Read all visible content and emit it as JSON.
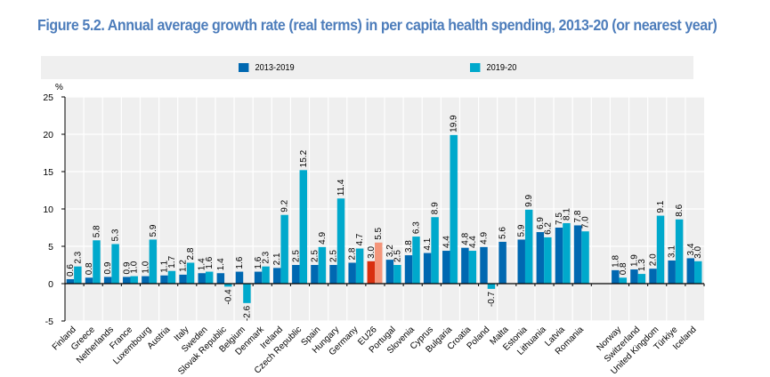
{
  "title": "Figure 5.2. Annual average growth rate (real terms) in per capita health spending, 2013-20 (or nearest year)",
  "colors": {
    "series1": "#0068b1",
    "series2": "#00a9cc",
    "eu_series1": "#d9300f",
    "eu_series2": "#f4957a",
    "plot_bg": "#efefef",
    "title": "#4d7dbb"
  },
  "chart_data": {
    "type": "bar",
    "title": "Figure 5.2. Annual average growth rate (real terms) in per capita health spending, 2013-20 (or nearest year)",
    "xlabel": "",
    "ylabel": "%",
    "ylim": [
      -5,
      25
    ],
    "yticks": [
      -5,
      0,
      5,
      10,
      15,
      20,
      25
    ],
    "grid": true,
    "legend_position": "top",
    "highlight_category": "EU26",
    "categories": [
      "Finland",
      "Greece",
      "Netherlands",
      "France",
      "Luxembourg",
      "Austria",
      "Italy",
      "Sweden",
      "Slovak Republic",
      "Belgium",
      "Denmark",
      "Ireland",
      "Czech Republic",
      "Spain",
      "Hungary",
      "Germany",
      "EU26",
      "Portugal",
      "Slovenia",
      "Cyprus",
      "Bulgaria",
      "Croatia",
      "Poland",
      "Malta",
      "Estonia",
      "Lithuania",
      "Latvia",
      "Romania",
      "",
      "Norway",
      "Switzerland",
      "United Kingdom",
      "Türkiye",
      "Iceland"
    ],
    "series": [
      {
        "name": "2013-2019",
        "values": [
          0.6,
          0.8,
          0.9,
          0.9,
          1.0,
          1.1,
          1.2,
          1.4,
          1.4,
          1.6,
          1.6,
          2.1,
          2.5,
          2.5,
          2.5,
          2.8,
          3.0,
          3.2,
          3.8,
          4.1,
          4.4,
          4.8,
          4.9,
          5.6,
          5.9,
          6.9,
          7.5,
          7.8,
          null,
          1.8,
          1.9,
          2.0,
          3.1,
          3.4
        ]
      },
      {
        "name": "2019-20",
        "values": [
          2.3,
          5.8,
          5.3,
          1.0,
          5.9,
          1.7,
          2.8,
          1.6,
          -0.4,
          -2.6,
          2.3,
          9.2,
          15.2,
          4.9,
          11.4,
          4.7,
          5.5,
          2.5,
          6.3,
          8.9,
          19.9,
          4.4,
          -0.7,
          null,
          9.9,
          6.2,
          8.1,
          7.0,
          null,
          0.8,
          1.3,
          9.1,
          8.6,
          3.0
        ]
      }
    ],
    "value_labels": {
      "2013-2019": [
        "0.6",
        "0.8",
        "0.9",
        "0.9",
        "1.0",
        "1.1",
        "1.2",
        "1.4",
        "1.4",
        "1.6",
        "1.6",
        "2.1",
        "2.5",
        "2.5",
        "2.5",
        "2.8",
        "3.0",
        "3.2",
        "3.8",
        "4.1",
        "4.4",
        "4.8",
        "4.9",
        "5.6",
        "5.9",
        "6.9",
        "7.5",
        "7.8",
        "",
        "1.8",
        "1.9",
        "2.0",
        "3.1",
        "3.4"
      ],
      "2019-20": [
        "2.3",
        "5.8",
        "5.3",
        "1.0",
        "5.9",
        "1.7",
        "2.8",
        "1.6",
        "-0.4",
        "-2.6",
        "2.3",
        "9.2",
        "15.2",
        "4.9",
        "11.4",
        "4.7",
        "5.5",
        "2.5",
        "6.3",
        "8.9",
        "19.9",
        "4.4",
        "-0.7",
        "",
        "9.9",
        "6.2",
        "8.1",
        "7.0",
        "",
        "0.8",
        "1.3",
        "9.1",
        "8.6",
        "3.0"
      ]
    }
  },
  "legend": {
    "items": [
      {
        "label": "2013-2019"
      },
      {
        "label": "2019-20"
      }
    ]
  },
  "axis": {
    "unit_label": "%"
  }
}
